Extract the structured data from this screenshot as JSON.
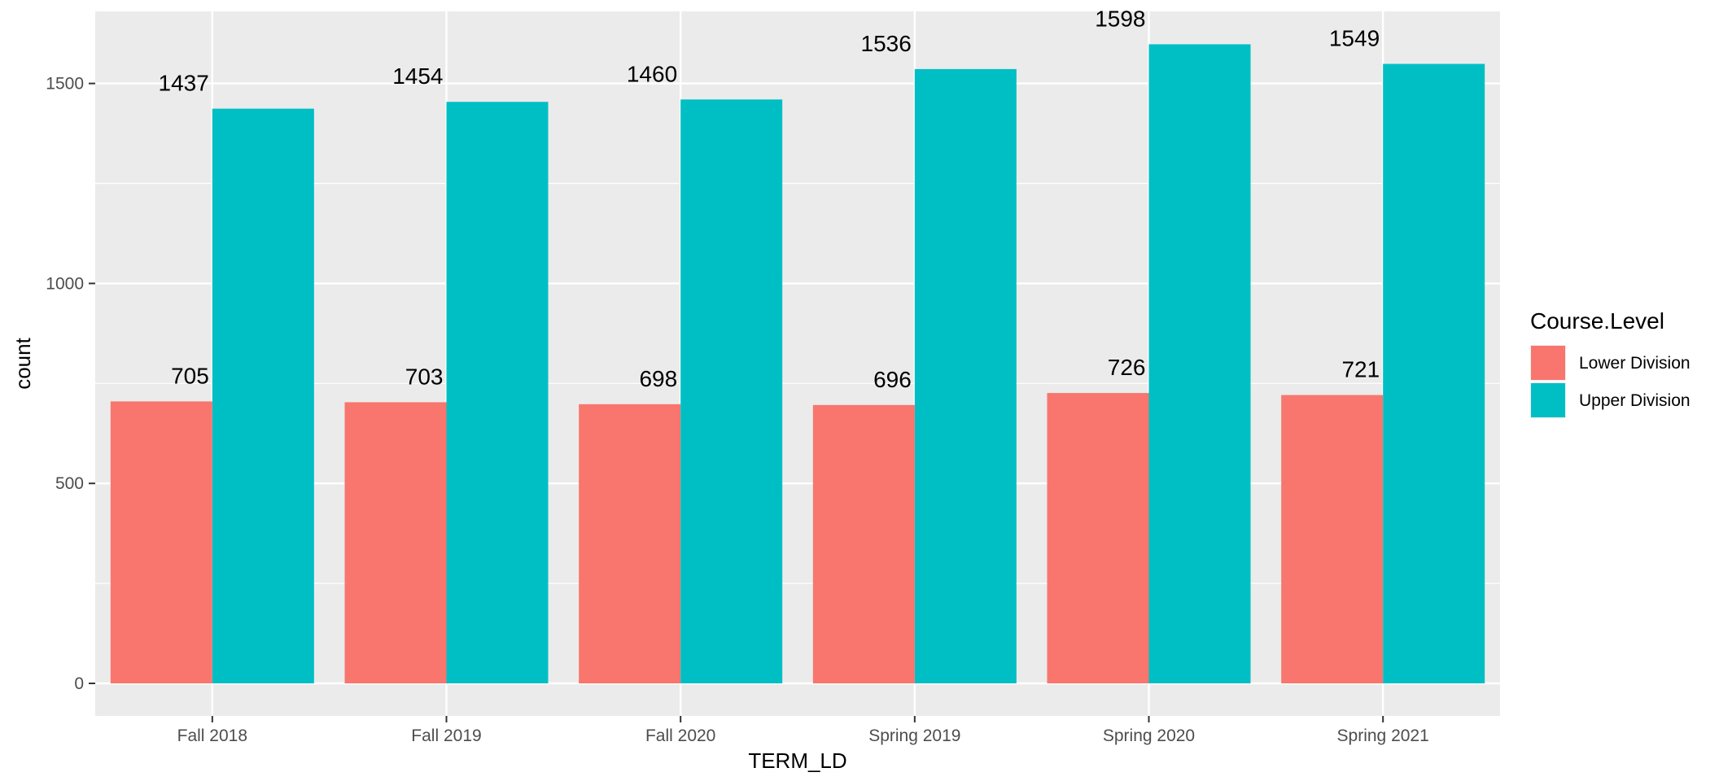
{
  "chart_data": {
    "type": "bar",
    "xlabel": "TERM_LD",
    "ylabel": "count",
    "categories": [
      "Fall 2018",
      "Fall 2019",
      "Fall 2020",
      "Spring 2019",
      "Spring 2020",
      "Spring 2021"
    ],
    "series": [
      {
        "name": "Lower Division",
        "values": [
          705,
          703,
          698,
          696,
          726,
          721
        ],
        "color": "#F8766D"
      },
      {
        "name": "Upper Division",
        "values": [
          1437,
          1454,
          1460,
          1536,
          1598,
          1549
        ],
        "color": "#00BFC4"
      }
    ],
    "yticks": [
      0,
      500,
      1000,
      1500
    ],
    "ylim": [
      -80,
      1680
    ],
    "legend": {
      "title": "Course.Level",
      "position": "right"
    },
    "grid": true,
    "background": "#EBEBEB",
    "gridline_color": "#FFFFFF"
  }
}
